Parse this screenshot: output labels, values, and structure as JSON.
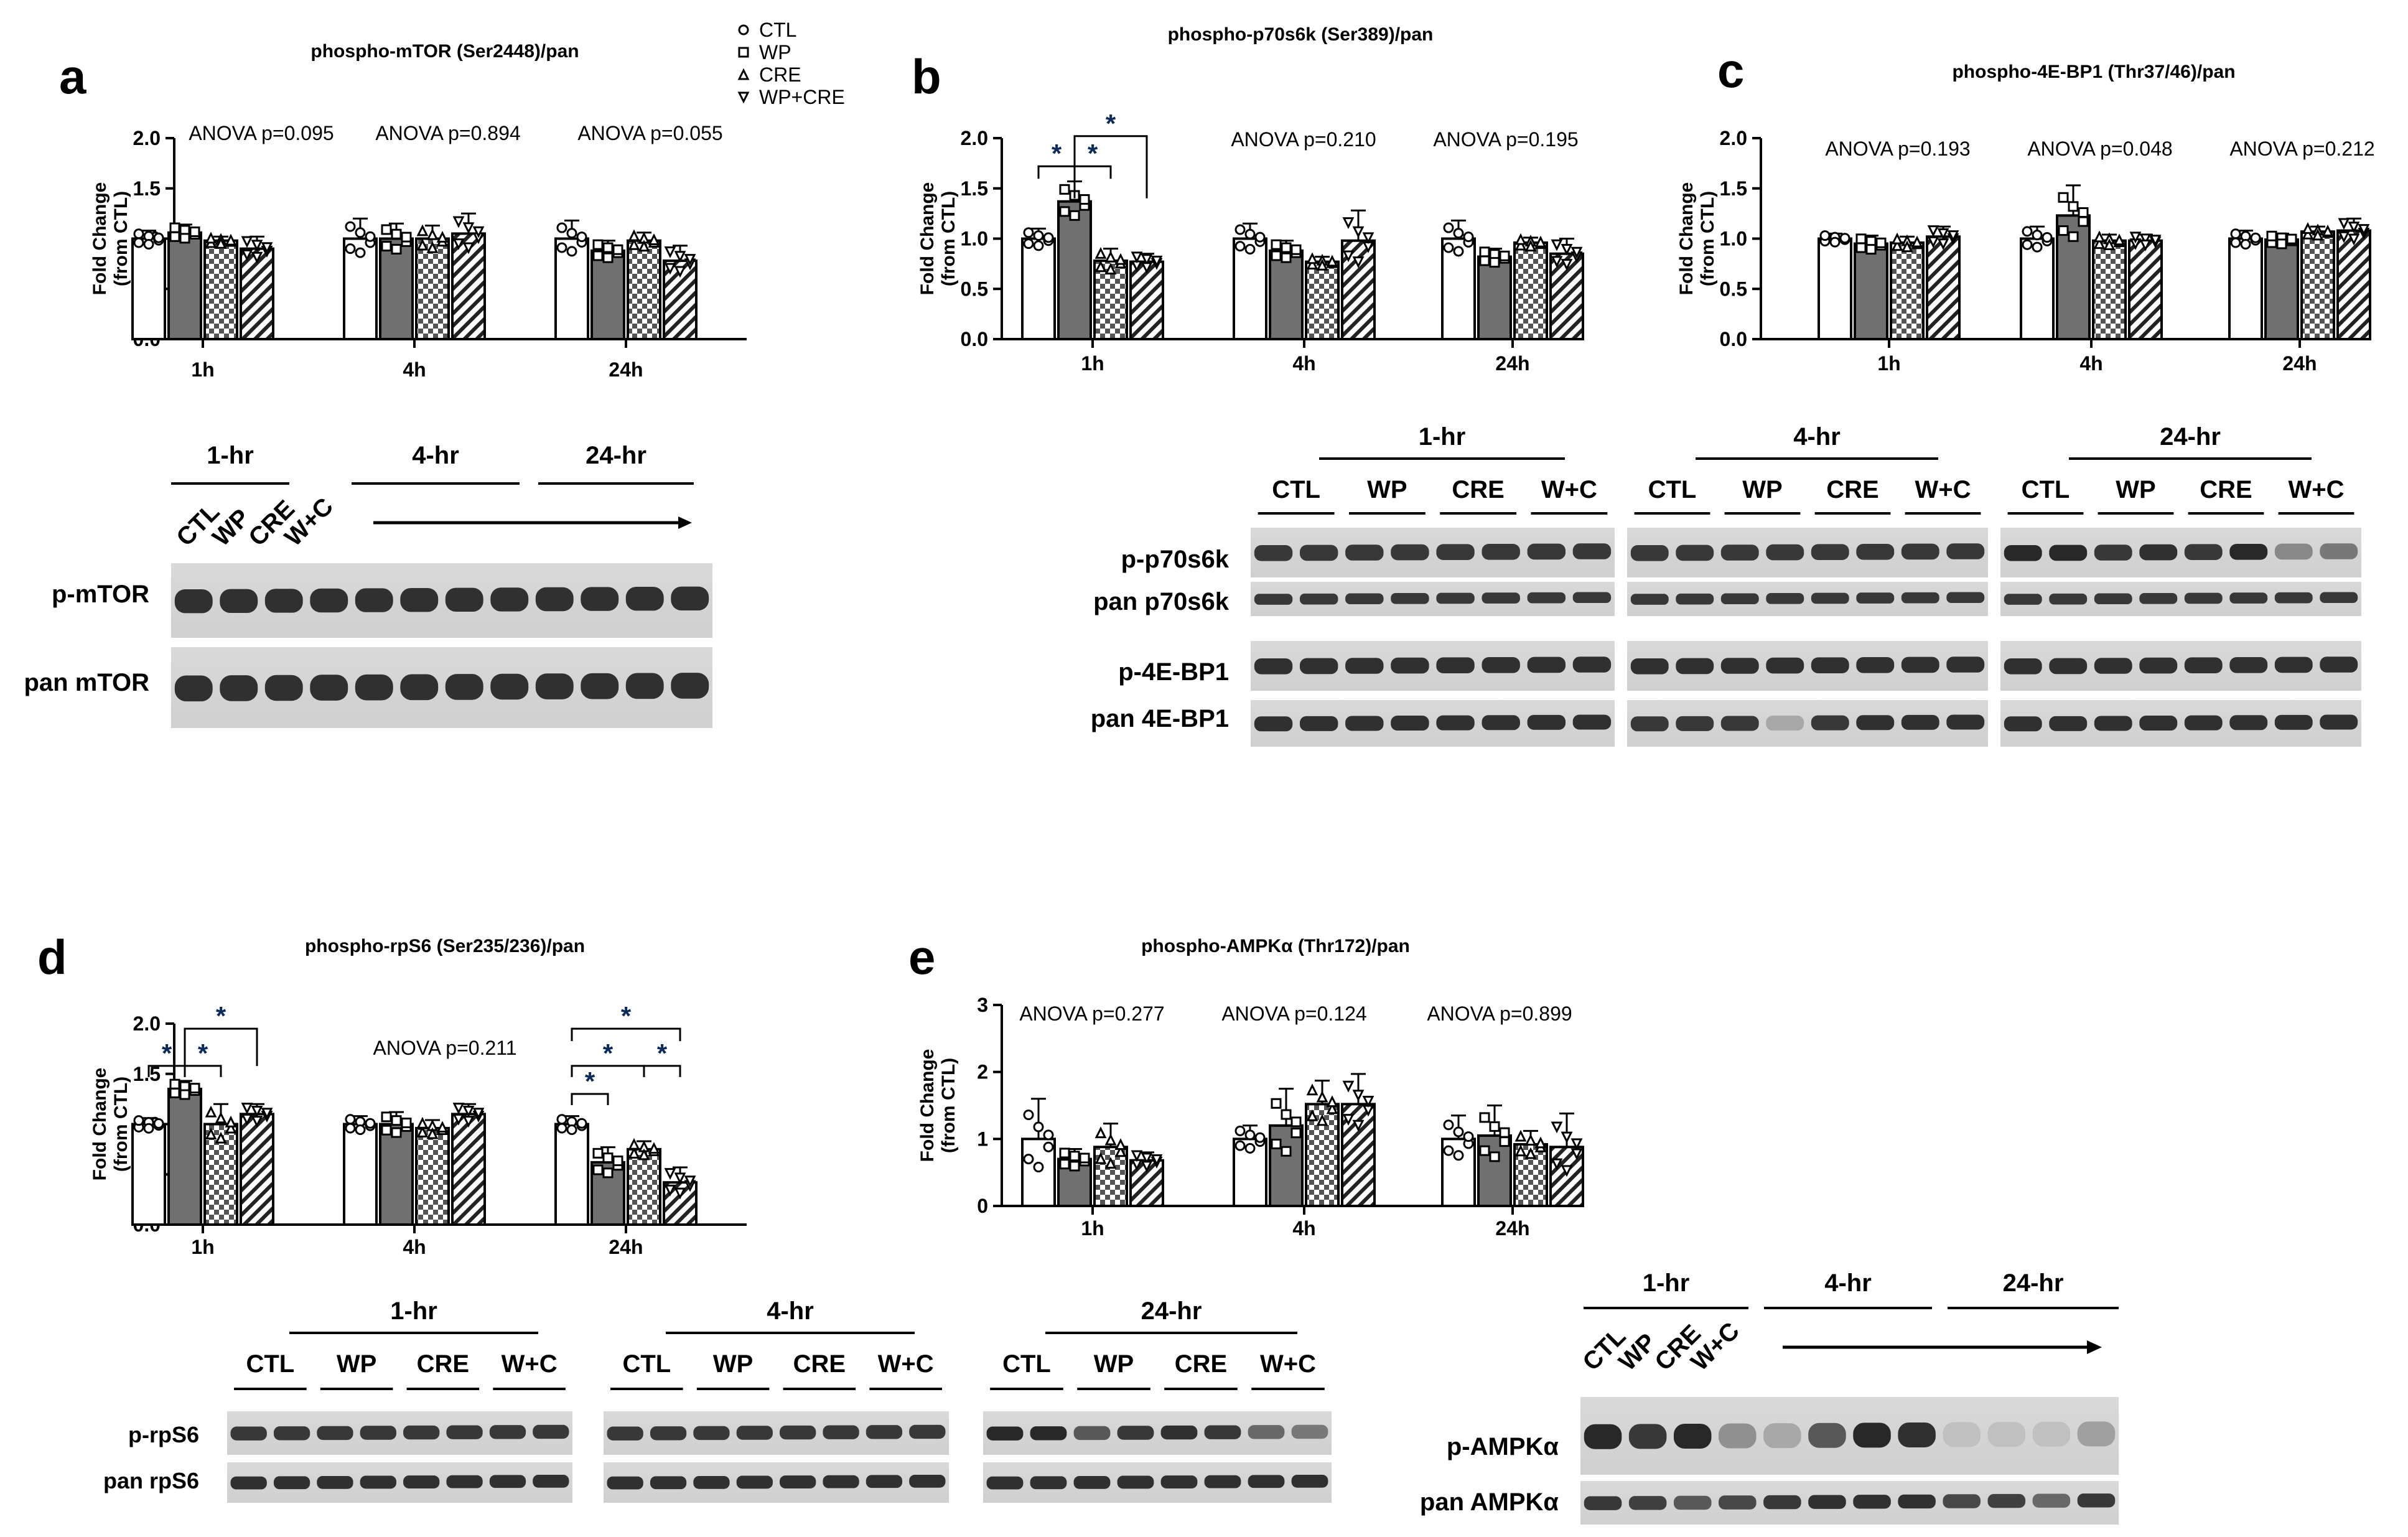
{
  "legend": {
    "items": [
      {
        "label": "CTL",
        "marker": "circle",
        "fill": "open"
      },
      {
        "label": "WP",
        "marker": "square",
        "fill": "dark-gray"
      },
      {
        "label": "CRE",
        "marker": "triangle",
        "fill": "checker"
      },
      {
        "label": "WP+CRE",
        "marker": "triangle-down",
        "fill": "diagonal-hatch"
      }
    ]
  },
  "chart_data": [
    {
      "type": "bar",
      "panel": "a",
      "title": "phospho-mTOR (Ser2448)/pan",
      "ylabel": "Fold Change (from CTL)",
      "ylim": [
        0,
        2.0
      ],
      "yticks": [
        "0.0",
        "0.5",
        "1.0",
        "1.5",
        "2.0"
      ],
      "categories": [
        "1h",
        "4h",
        "24h"
      ],
      "series": [
        {
          "name": "CTL",
          "values": [
            1.0,
            1.0,
            1.0
          ],
          "err": [
            0.08,
            0.2,
            0.18
          ]
        },
        {
          "name": "WP",
          "values": [
            1.06,
            1.0,
            0.88
          ],
          "err": [
            0.08,
            0.15,
            0.1
          ]
        },
        {
          "name": "CRE",
          "values": [
            0.98,
            1.0,
            0.98
          ],
          "err": [
            0.04,
            0.13,
            0.08
          ]
        },
        {
          "name": "WP+CRE",
          "values": [
            0.9,
            1.05,
            0.78
          ],
          "err": [
            0.12,
            0.2,
            0.15
          ]
        }
      ],
      "annotations": [
        "ANOVA p=0.095",
        "ANOVA p=0.894",
        "ANOVA p=0.055"
      ]
    },
    {
      "type": "bar",
      "panel": "b",
      "title": "phospho-p70s6k (Ser389)/pan",
      "ylabel": "Fold Change (from CTL)",
      "ylim": [
        0,
        2.0
      ],
      "yticks": [
        "0.0",
        "0.5",
        "1.0",
        "1.5",
        "2.0"
      ],
      "categories": [
        "1h",
        "4h",
        "24h"
      ],
      "series": [
        {
          "name": "CTL",
          "values": [
            1.0,
            1.0,
            1.0
          ],
          "err": [
            0.1,
            0.15,
            0.18
          ]
        },
        {
          "name": "WP",
          "values": [
            1.37,
            0.88,
            0.82
          ],
          "err": [
            0.2,
            0.1,
            0.08
          ]
        },
        {
          "name": "CRE",
          "values": [
            0.78,
            0.77,
            0.96
          ],
          "err": [
            0.12,
            0.05,
            0.05
          ]
        },
        {
          "name": "WP+CRE",
          "values": [
            0.77,
            0.98,
            0.85
          ],
          "err": [
            0.08,
            0.3,
            0.15
          ]
        }
      ],
      "annotations": [
        "ANOVA p=0.210",
        "ANOVA p=0.195"
      ],
      "significance": [
        "*",
        "*",
        "*"
      ]
    },
    {
      "type": "bar",
      "panel": "c",
      "title": "phospho-4E-BP1 (Thr37/46)/pan",
      "ylabel": "Fold Change (from CTL)",
      "ylim": [
        0,
        2.0
      ],
      "yticks": [
        "0.0",
        "0.5",
        "1.0",
        "1.5",
        "2.0"
      ],
      "categories": [
        "1h",
        "4h",
        "24h"
      ],
      "series": [
        {
          "name": "CTL",
          "values": [
            1.0,
            1.0,
            1.0
          ],
          "err": [
            0.05,
            0.12,
            0.08
          ]
        },
        {
          "name": "WP",
          "values": [
            0.95,
            1.23,
            0.99
          ],
          "err": [
            0.08,
            0.3,
            0.06
          ]
        },
        {
          "name": "CRE",
          "values": [
            0.96,
            0.98,
            1.07
          ],
          "err": [
            0.06,
            0.06,
            0.05
          ]
        },
        {
          "name": "WP+CRE",
          "values": [
            1.02,
            0.98,
            1.08
          ],
          "err": [
            0.1,
            0.06,
            0.12
          ]
        }
      ],
      "annotations": [
        "ANOVA p=0.193",
        "ANOVA p=0.048",
        "ANOVA p=0.212"
      ]
    },
    {
      "type": "bar",
      "panel": "d",
      "title": "phospho-rpS6 (Ser235/236)/pan",
      "ylabel": "Fold Change (from CTL)",
      "ylim": [
        0,
        2.0
      ],
      "yticks": [
        "0.0",
        "0.5",
        "1.0",
        "1.5",
        "2.0"
      ],
      "categories": [
        "1h",
        "4h",
        "24h"
      ],
      "series": [
        {
          "name": "CTL",
          "values": [
            1.0,
            1.0,
            1.0
          ],
          "err": [
            0.06,
            0.08,
            0.08
          ]
        },
        {
          "name": "WP",
          "values": [
            1.35,
            1.0,
            0.62
          ],
          "err": [
            0.08,
            0.12,
            0.15
          ]
        },
        {
          "name": "CRE",
          "values": [
            1.0,
            0.96,
            0.75
          ],
          "err": [
            0.2,
            0.08,
            0.08
          ]
        },
        {
          "name": "WP+CRE",
          "values": [
            1.1,
            1.1,
            0.42
          ],
          "err": [
            0.1,
            0.1,
            0.15
          ]
        }
      ],
      "annotations": [
        "ANOVA p=0.211"
      ],
      "significance": [
        "*",
        "*",
        "*",
        "*",
        "*",
        "*",
        "*"
      ]
    },
    {
      "type": "bar",
      "panel": "e",
      "title": "phospho-AMPKα (Thr172)/pan",
      "ylabel": "Fold Change (from CTL)",
      "ylim": [
        0,
        3
      ],
      "yticks": [
        "0",
        "1",
        "2",
        "3"
      ],
      "categories": [
        "1h",
        "4h",
        "24h"
      ],
      "series": [
        {
          "name": "CTL",
          "values": [
            1.0,
            1.0,
            1.0
          ],
          "err": [
            0.6,
            0.2,
            0.35
          ]
        },
        {
          "name": "WP",
          "values": [
            0.7,
            1.2,
            1.05
          ],
          "err": [
            0.15,
            0.55,
            0.45
          ]
        },
        {
          "name": "CRE",
          "values": [
            0.88,
            1.52,
            0.92
          ],
          "err": [
            0.35,
            0.35,
            0.2
          ]
        },
        {
          "name": "WP+CRE",
          "values": [
            0.68,
            1.52,
            0.88
          ],
          "err": [
            0.12,
            0.45,
            0.5
          ]
        }
      ],
      "annotations": [
        "ANOVA p=0.277",
        "ANOVA p=0.124",
        "ANOVA p=0.899"
      ]
    }
  ],
  "blots": {
    "a": {
      "times": [
        "1-hr",
        "4-hr",
        "24-hr"
      ],
      "lanes": [
        "CTL",
        "WP",
        "CRE",
        "W+C"
      ],
      "rows": [
        "p-mTOR",
        "pan mTOR"
      ]
    },
    "bc": {
      "times": [
        "1-hr",
        "4-hr",
        "24-hr"
      ],
      "lanes": [
        "CTL",
        "WP",
        "CRE",
        "W+C"
      ],
      "rows": [
        "p-p70s6k",
        "pan p70s6k",
        "p-4E-BP1",
        "pan 4E-BP1"
      ]
    },
    "d": {
      "times": [
        "1-hr",
        "4-hr",
        "24-hr"
      ],
      "lanes": [
        "CTL",
        "WP",
        "CRE",
        "W+C"
      ],
      "rows": [
        "p-rpS6",
        "pan rpS6"
      ]
    },
    "e": {
      "times": [
        "1-hr",
        "4-hr",
        "24-hr"
      ],
      "lanes": [
        "CTL",
        "WP",
        "CRE",
        "W+C"
      ],
      "rows": [
        "p-AMPKα",
        "pan AMPKα"
      ]
    }
  }
}
